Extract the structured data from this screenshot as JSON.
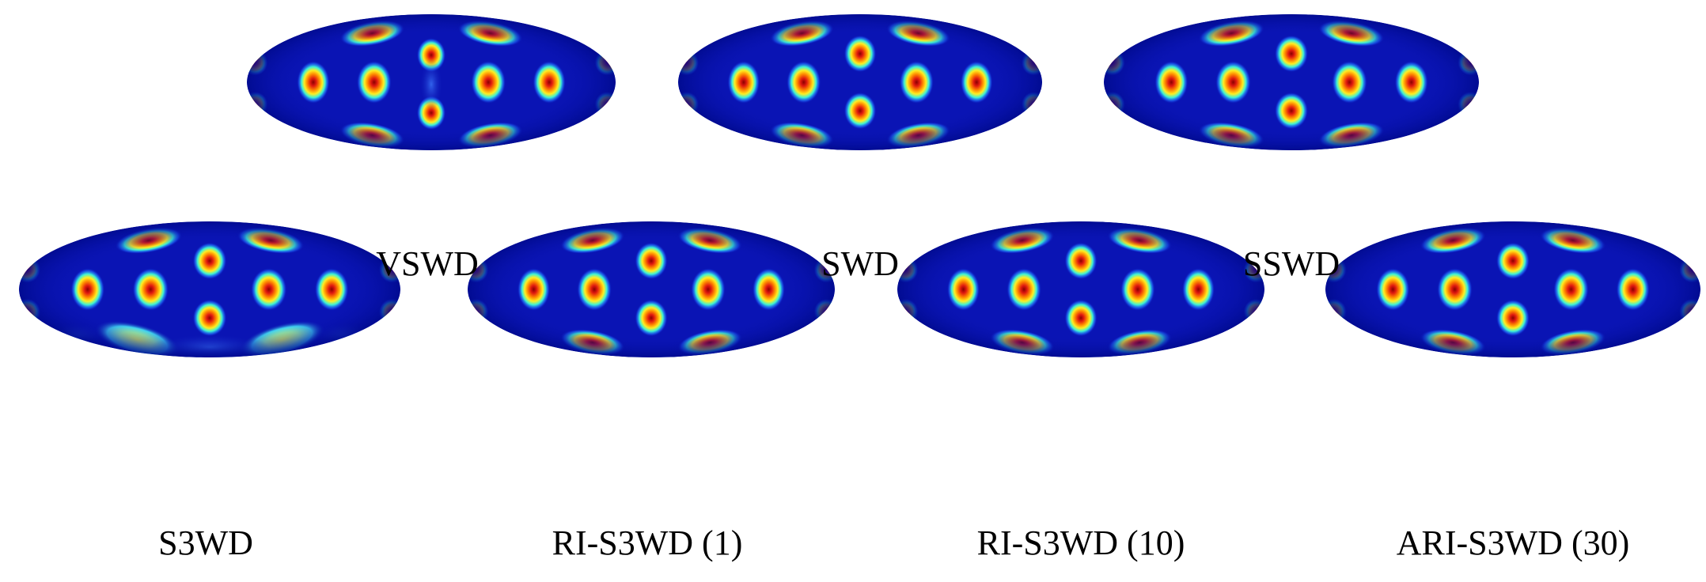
{
  "colormap": [
    "#00007f",
    "#0000ff",
    "#00ffff",
    "#ffff00",
    "#ff0000",
    "#7f0000"
  ],
  "background_color": "#0a14b4",
  "panels": [
    {
      "label": "VSWD",
      "variant": "vswd"
    },
    {
      "label": "SWD",
      "variant": "regular"
    },
    {
      "label": "SSWD",
      "variant": "regular"
    },
    {
      "label": "S3WD",
      "variant": "s3wd"
    },
    {
      "label": "RI-S3WD (1)",
      "variant": "regular"
    },
    {
      "label": "RI-S3WD (10)",
      "variant": "regular"
    },
    {
      "label": "ARI-S3WD (30)",
      "variant": "regular"
    }
  ]
}
